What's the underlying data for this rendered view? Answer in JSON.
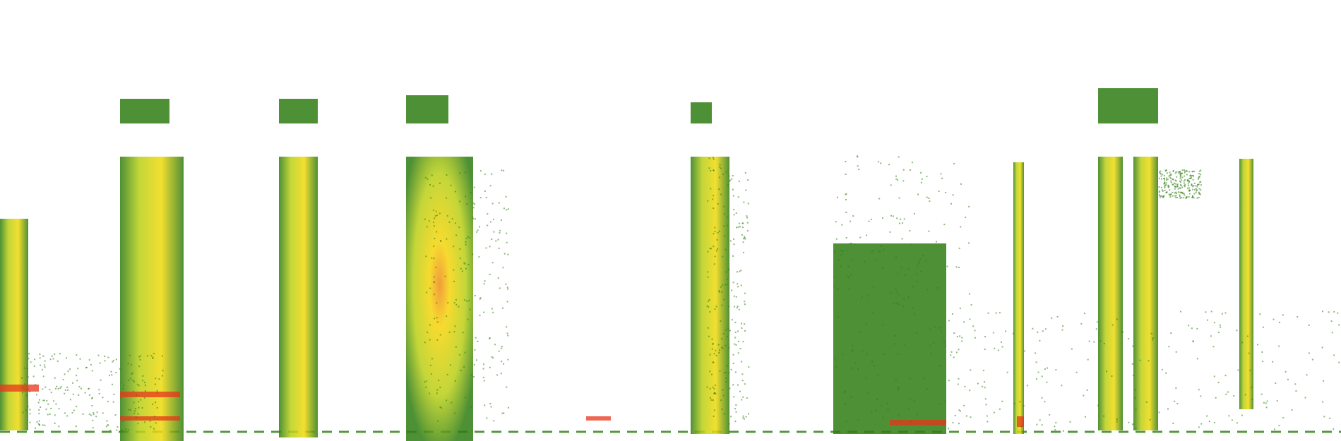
{
  "figure": {
    "kind": "spectrogram",
    "colors": {
      "background": "#ffffff",
      "low": "#2f7d12",
      "mid": "#c7d414",
      "high": "#f5d40a",
      "peak": "#e8341a"
    }
  }
}
